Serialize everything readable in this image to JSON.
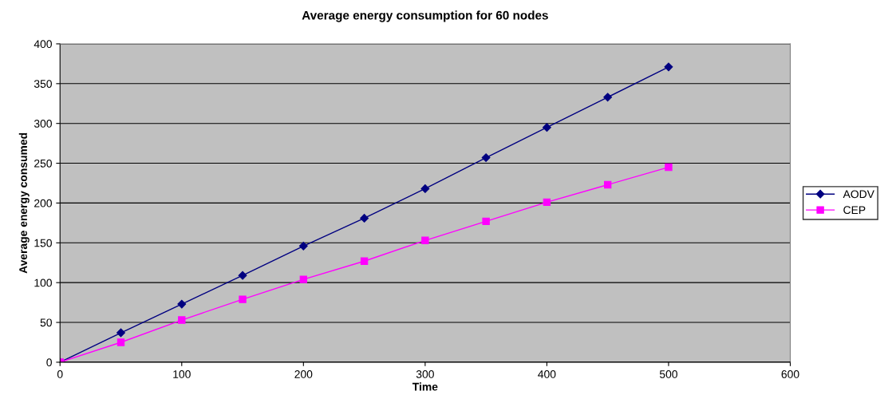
{
  "chart_data": {
    "type": "line",
    "title": "Average energy consumption for 60 nodes",
    "xlabel": "Time",
    "ylabel": "Average energy consumed",
    "x": [
      0,
      50,
      100,
      150,
      200,
      250,
      300,
      350,
      400,
      450,
      500
    ],
    "series": [
      {
        "name": "AODV",
        "color": "#000080",
        "marker": "diamond",
        "values": [
          0,
          37,
          73,
          109,
          146,
          181,
          218,
          257,
          295,
          333,
          371
        ]
      },
      {
        "name": "CEP",
        "color": "#ff00ff",
        "marker": "square",
        "values": [
          0,
          25,
          53,
          79,
          104,
          127,
          153,
          177,
          201,
          223,
          245
        ]
      }
    ],
    "xlim": [
      0,
      600
    ],
    "xticks": [
      0,
      100,
      200,
      300,
      400,
      500,
      600
    ],
    "ylim": [
      0,
      400
    ],
    "yticks": [
      0,
      50,
      100,
      150,
      200,
      250,
      300,
      350,
      400
    ],
    "grid": "y",
    "legend": "right",
    "line_style": "solid"
  }
}
